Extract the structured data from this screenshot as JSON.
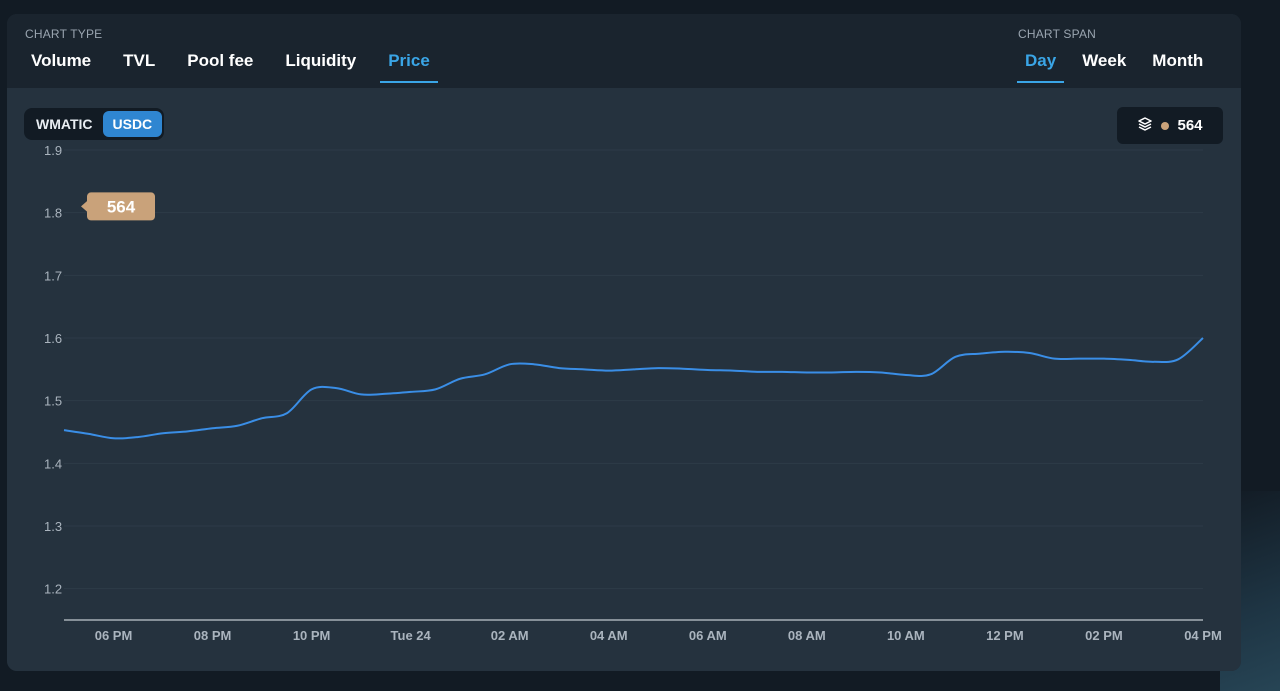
{
  "chart_type": {
    "label": "CHART TYPE",
    "tabs": [
      "Volume",
      "TVL",
      "Pool fee",
      "Liquidity",
      "Price"
    ],
    "active": "Price"
  },
  "chart_span": {
    "label": "CHART SPAN",
    "tabs": [
      "Day",
      "Week",
      "Month"
    ],
    "active": "Day"
  },
  "tokens": {
    "items": [
      "WMATIC",
      "USDC"
    ],
    "active": "USDC"
  },
  "layers_badge": {
    "icon": "layers-icon",
    "value": "564",
    "dot_color": "#c9a27a"
  },
  "colors": {
    "accent": "#3aa5e6",
    "line": "#3a8ee6",
    "marker": "#c9a27a"
  },
  "chart_data": {
    "type": "line",
    "ylim": [
      1.15,
      1.9
    ],
    "y_ticks": [
      "1.9",
      "1.8",
      "1.7",
      "1.6",
      "1.5",
      "1.4",
      "1.3",
      "1.2"
    ],
    "x_ticks": [
      "06 PM",
      "08 PM",
      "10 PM",
      "Tue 24",
      "02 AM",
      "04 AM",
      "06 AM",
      "08 AM",
      "10 AM",
      "12 PM",
      "02 PM",
      "04 PM"
    ],
    "marker": {
      "label": "564",
      "y": 1.81
    },
    "series": [
      {
        "x": [
          0,
          0.5,
          1,
          1.5,
          2,
          2.5,
          3,
          3.5,
          4,
          4.5,
          5,
          5.5,
          6,
          6.5,
          7,
          7.5,
          8,
          8.5,
          9,
          9.5,
          10,
          10.5,
          11,
          11.5,
          12,
          12.5,
          13,
          13.5,
          14,
          14.5,
          15,
          15.5,
          16,
          16.5,
          17,
          17.5,
          18,
          18.5,
          19,
          19.5,
          20,
          20.5,
          21,
          21.5,
          22,
          22.5,
          23
        ],
        "y": [
          1.453,
          1.447,
          1.44,
          1.442,
          1.448,
          1.451,
          1.456,
          1.46,
          1.472,
          1.48,
          1.518,
          1.52,
          1.51,
          1.511,
          1.514,
          1.518,
          1.535,
          1.542,
          1.558,
          1.558,
          1.552,
          1.55,
          1.548,
          1.55,
          1.552,
          1.551,
          1.549,
          1.548,
          1.546,
          1.546,
          1.545,
          1.545,
          1.546,
          1.545,
          1.541,
          1.542,
          1.57,
          1.575,
          1.578,
          1.576,
          1.567,
          1.567,
          1.567,
          1.565,
          1.562,
          1.566,
          1.6
        ]
      }
    ]
  }
}
